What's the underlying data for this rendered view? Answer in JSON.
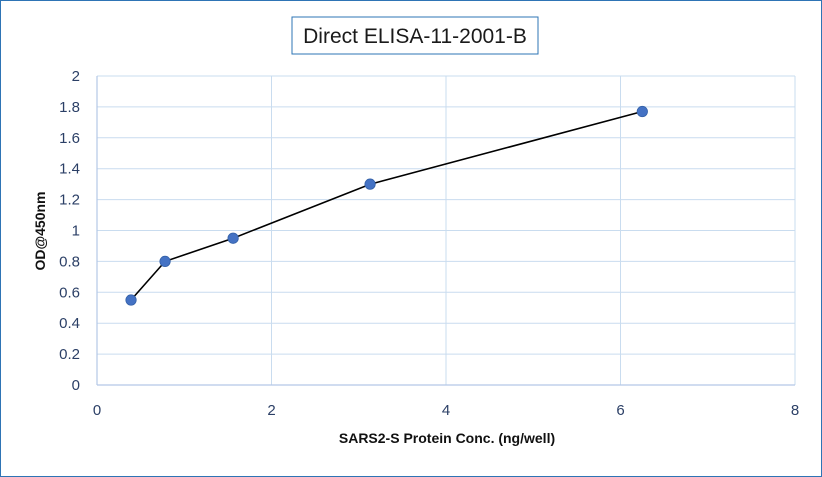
{
  "chart_data": {
    "type": "line",
    "title": "Direct ELISA-11-2001-B",
    "xlabel": "SARS2-S Protein Conc. (ng/well)",
    "ylabel": "OD@450nm",
    "xlim": [
      0,
      8
    ],
    "ylim": [
      0,
      2
    ],
    "x_ticks": [
      {
        "value": 0,
        "label": "0"
      },
      {
        "value": 2,
        "label": "2"
      },
      {
        "value": 4,
        "label": "4"
      },
      {
        "value": 6,
        "label": "6"
      },
      {
        "value": 8,
        "label": "8"
      }
    ],
    "y_ticks": [
      {
        "value": 0,
        "label": "0"
      },
      {
        "value": 0.2,
        "label": "0.2"
      },
      {
        "value": 0.4,
        "label": "0.4"
      },
      {
        "value": 0.6,
        "label": "0.6"
      },
      {
        "value": 0.8,
        "label": "0.8"
      },
      {
        "value": 1,
        "label": "1"
      },
      {
        "value": 1.2,
        "label": "1.2"
      },
      {
        "value": 1.4,
        "label": "1.4"
      },
      {
        "value": 1.6,
        "label": "1.6"
      },
      {
        "value": 1.8,
        "label": "1.8"
      },
      {
        "value": 2,
        "label": "2"
      }
    ],
    "grid": true,
    "legend": "none",
    "series": [
      {
        "x": [
          0.39,
          0.78,
          1.56,
          3.13,
          6.25
        ],
        "y": [
          0.55,
          0.8,
          0.95,
          1.3,
          1.77
        ],
        "line_color": "#000000",
        "marker_color": "#4472c4"
      }
    ],
    "colors": {
      "frame_border": "#2e74b5",
      "grid": "#c9dcef",
      "axis": "#b4c7e7",
      "title_border": "#2e74b5",
      "tick_text": "#2b3f66"
    }
  }
}
